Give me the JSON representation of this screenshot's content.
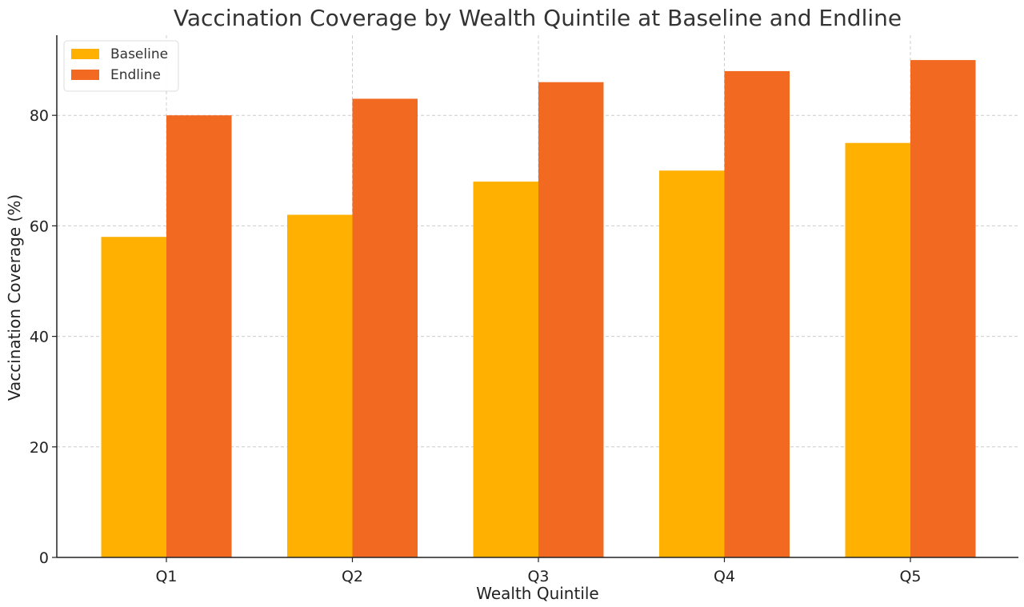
{
  "chart_data": {
    "type": "bar",
    "title": "Vaccination Coverage by Wealth Quintile at Baseline and Endline",
    "xlabel": "Wealth Quintile",
    "ylabel": "Vaccination Coverage (%)",
    "categories": [
      "Q1",
      "Q2",
      "Q3",
      "Q4",
      "Q5"
    ],
    "series": [
      {
        "name": "Baseline",
        "values": [
          58,
          62,
          68,
          70,
          75
        ],
        "color": "#FFB000"
      },
      {
        "name": "Endline",
        "values": [
          80,
          83,
          86,
          88,
          90
        ],
        "color": "#F26A21"
      }
    ],
    "ylim": [
      0,
      94.5
    ],
    "yticks": [
      0,
      20,
      40,
      60,
      80
    ],
    "grid": true,
    "legend": "top-left"
  }
}
